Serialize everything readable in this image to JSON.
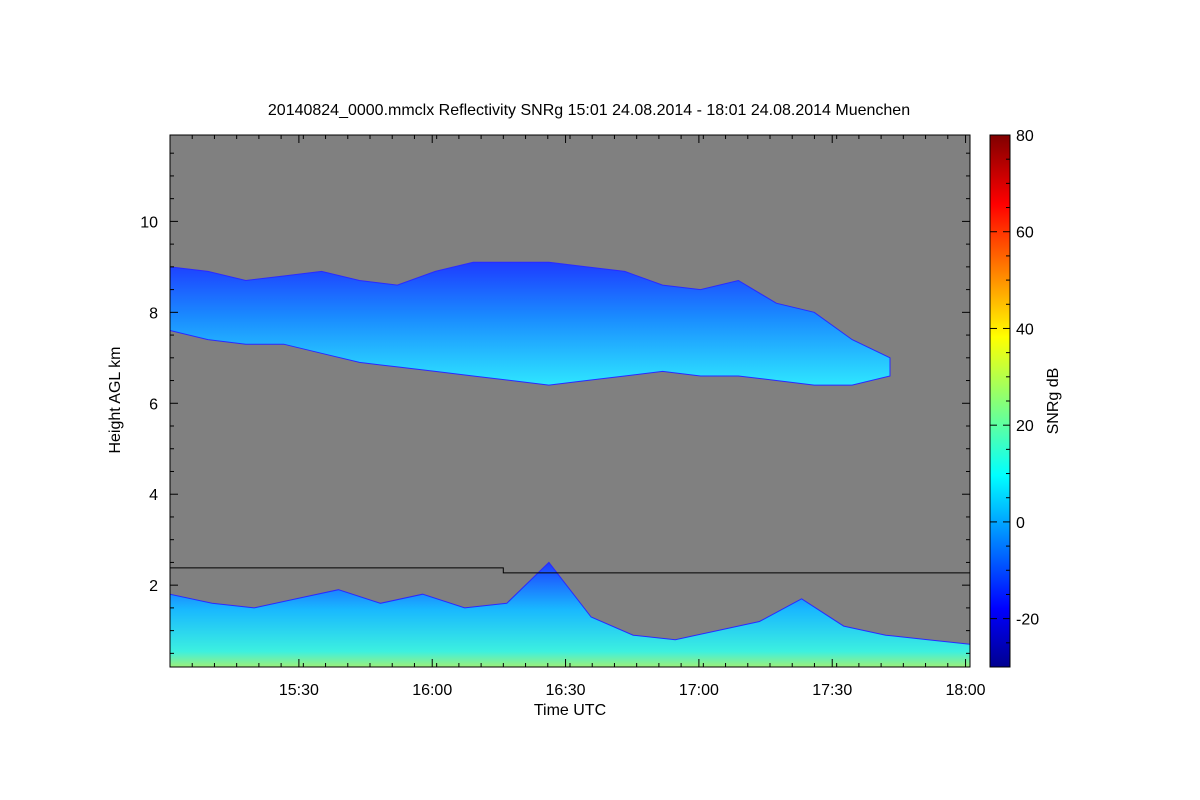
{
  "chart_data": {
    "type": "heatmap",
    "title": "20140824_0000.mmclx Reflectivity SNRg   15:01 24.08.2014 - 18:01 24.08.2014 Muenchen",
    "xlabel": "Time UTC",
    "ylabel": "Height AGL km",
    "xticks": [
      "15:30",
      "16:00",
      "16:30",
      "17:00",
      "17:30",
      "18:00"
    ],
    "yticks": [
      "2",
      "4",
      "6",
      "8",
      "10"
    ],
    "xlim": [
      "15:01",
      "18:01"
    ],
    "ylim": [
      0.2,
      11.9
    ],
    "colorbar": {
      "label": "SNRg dB",
      "ticks": [
        "-20",
        "0",
        "20",
        "40",
        "60",
        "80"
      ],
      "range": [
        -30,
        80
      ],
      "colormap": "jet"
    },
    "background_color": "#808080",
    "upper_cloud": {
      "description_free": true,
      "top_km": [
        9.0,
        8.9,
        8.7,
        8.8,
        8.9,
        8.7,
        8.6,
        8.9,
        9.1,
        9.1,
        9.1,
        9.0,
        8.9,
        8.6,
        8.5,
        8.7,
        8.2,
        8.0,
        7.4,
        7.0
      ],
      "base_km": [
        7.6,
        7.4,
        7.3,
        7.3,
        7.1,
        6.9,
        6.8,
        6.7,
        6.6,
        6.5,
        6.4,
        6.5,
        6.6,
        6.7,
        6.6,
        6.6,
        6.5,
        6.4,
        6.4,
        6.6
      ],
      "time_start": "15:01",
      "time_end": "17:43",
      "snr_range_db": [
        -25,
        10
      ]
    },
    "boundary_layer": {
      "top_km": [
        1.8,
        1.6,
        1.5,
        1.7,
        1.9,
        1.6,
        1.8,
        1.5,
        1.6,
        2.5,
        1.3,
        0.9,
        0.8,
        1.0,
        1.2,
        1.7,
        1.1,
        0.9,
        0.8,
        0.7
      ],
      "time_start": "15:01",
      "time_end": "18:01",
      "snr_range_db": [
        -25,
        30
      ]
    },
    "reference_line": {
      "segments": [
        {
          "from": "15:01",
          "to": "16:16",
          "height_km": 2.38
        },
        {
          "from": "16:16",
          "to": "18:01",
          "height_km": 2.27
        }
      ]
    }
  }
}
